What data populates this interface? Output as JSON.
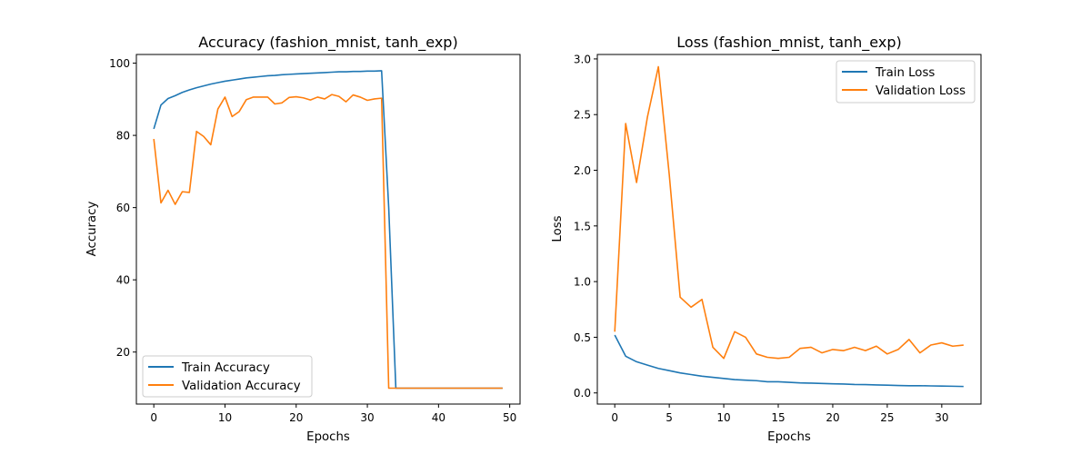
{
  "chart_data": [
    {
      "type": "line",
      "title": "Accuracy (fashion_mnist, tanh_exp)",
      "xlabel": "Epochs",
      "ylabel": "Accuracy",
      "xlim": [
        -2.45,
        51.45
      ],
      "ylim": [
        5.6,
        102.4
      ],
      "xticks": [
        0,
        10,
        20,
        30,
        40,
        50
      ],
      "yticks": [
        20,
        40,
        60,
        80,
        100
      ],
      "grid": false,
      "legend_position": "lower-left",
      "series": [
        {
          "name": "Train Accuracy",
          "color": "#1f77b4",
          "x": [
            0,
            1,
            2,
            3,
            4,
            5,
            6,
            7,
            8,
            9,
            10,
            11,
            12,
            13,
            14,
            15,
            16,
            17,
            18,
            19,
            20,
            21,
            22,
            23,
            24,
            25,
            26,
            27,
            28,
            29,
            30,
            31,
            32,
            33,
            34,
            35,
            36,
            37,
            38,
            39,
            40,
            41,
            42,
            43,
            44,
            45,
            46,
            47,
            48,
            49
          ],
          "y": [
            81.8,
            88.4,
            90.2,
            91.0,
            91.9,
            92.6,
            93.2,
            93.7,
            94.2,
            94.6,
            95.0,
            95.3,
            95.6,
            95.9,
            96.1,
            96.3,
            96.5,
            96.6,
            96.8,
            96.9,
            97.0,
            97.1,
            97.2,
            97.3,
            97.4,
            97.5,
            97.6,
            97.6,
            97.7,
            97.7,
            97.8,
            97.8,
            97.9,
            60.0,
            10.0,
            10.0,
            10.0,
            10.0,
            10.0,
            10.0,
            10.0,
            10.0,
            10.0,
            10.0,
            10.0,
            10.0,
            10.0,
            10.0,
            10.0,
            10.0
          ]
        },
        {
          "name": "Validation Accuracy",
          "color": "#ff7f0e",
          "x": [
            0,
            1,
            2,
            3,
            4,
            5,
            6,
            7,
            8,
            9,
            10,
            11,
            12,
            13,
            14,
            15,
            16,
            17,
            18,
            19,
            20,
            21,
            22,
            23,
            24,
            25,
            26,
            27,
            28,
            29,
            30,
            31,
            32,
            33,
            34,
            35,
            36,
            37,
            38,
            39,
            40,
            41,
            42,
            43,
            44,
            45,
            46,
            47,
            48,
            49
          ],
          "y": [
            79.0,
            61.3,
            64.8,
            60.9,
            64.4,
            64.2,
            81.1,
            79.7,
            77.4,
            87.3,
            90.6,
            85.2,
            86.6,
            89.9,
            90.6,
            90.6,
            90.6,
            88.7,
            89.0,
            90.5,
            90.7,
            90.4,
            89.8,
            90.6,
            90.1,
            91.3,
            90.8,
            89.3,
            91.2,
            90.6,
            89.7,
            90.1,
            90.3,
            10.0,
            10.0,
            10.0,
            10.0,
            10.0,
            10.0,
            10.0,
            10.0,
            10.0,
            10.0,
            10.0,
            10.0,
            10.0,
            10.0,
            10.0,
            10.0,
            10.0
          ]
        }
      ]
    },
    {
      "type": "line",
      "title": "Loss (fashion_mnist, tanh_exp)",
      "xlabel": "Epochs",
      "ylabel": "Loss",
      "xlim": [
        -1.6,
        33.6
      ],
      "ylim": [
        -0.1,
        3.04
      ],
      "xticks": [
        0,
        5,
        10,
        15,
        20,
        25,
        30
      ],
      "yticks": [
        0.0,
        0.5,
        1.0,
        1.5,
        2.0,
        2.5,
        3.0
      ],
      "ytick_labels": [
        "0.0",
        "0.5",
        "1.0",
        "1.5",
        "2.0",
        "2.5",
        "3.0"
      ],
      "grid": false,
      "legend_position": "upper-right",
      "series": [
        {
          "name": "Train Loss",
          "color": "#1f77b4",
          "x": [
            0,
            1,
            2,
            3,
            4,
            5,
            6,
            7,
            8,
            9,
            10,
            11,
            12,
            13,
            14,
            15,
            16,
            17,
            18,
            19,
            20,
            21,
            22,
            23,
            24,
            25,
            26,
            27,
            28,
            29,
            30,
            31,
            32
          ],
          "y": [
            0.52,
            0.33,
            0.28,
            0.25,
            0.22,
            0.2,
            0.18,
            0.165,
            0.15,
            0.14,
            0.13,
            0.12,
            0.115,
            0.11,
            0.1,
            0.1,
            0.095,
            0.09,
            0.088,
            0.085,
            0.082,
            0.08,
            0.076,
            0.075,
            0.072,
            0.07,
            0.067,
            0.065,
            0.065,
            0.063,
            0.062,
            0.06,
            0.058
          ]
        },
        {
          "name": "Validation Loss",
          "color": "#ff7f0e",
          "x": [
            0,
            1,
            2,
            3,
            4,
            5,
            6,
            7,
            8,
            9,
            10,
            11,
            12,
            13,
            14,
            15,
            16,
            17,
            18,
            19,
            20,
            21,
            22,
            23,
            24,
            25,
            26,
            27,
            28,
            29,
            30,
            31,
            32
          ],
          "y": [
            0.55,
            2.42,
            1.89,
            2.48,
            2.93,
            1.96,
            0.86,
            0.77,
            0.84,
            0.41,
            0.31,
            0.55,
            0.5,
            0.35,
            0.32,
            0.31,
            0.32,
            0.4,
            0.41,
            0.36,
            0.39,
            0.38,
            0.41,
            0.38,
            0.42,
            0.35,
            0.39,
            0.48,
            0.36,
            0.43,
            0.45,
            0.42,
            0.43
          ]
        }
      ]
    }
  ]
}
